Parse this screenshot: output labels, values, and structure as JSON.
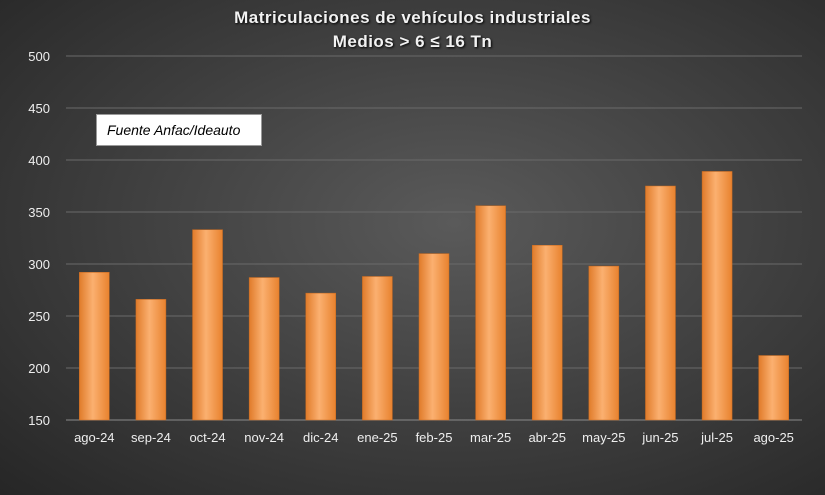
{
  "chart_data": {
    "type": "bar",
    "title": "Matriculaciones de vehículos industriales",
    "subtitle": "Medios > 6 ≤ 16 Tn",
    "source_note": "Fuente Anfac/Ideauto",
    "categories": [
      "ago-24",
      "sep-24",
      "oct-24",
      "nov-24",
      "dic-24",
      "ene-25",
      "feb-25",
      "mar-25",
      "abr-25",
      "may-25",
      "jun-25",
      "jul-25",
      "ago-25"
    ],
    "values": [
      292,
      266,
      333,
      287,
      272,
      288,
      310,
      356,
      318,
      298,
      375,
      389,
      212
    ],
    "ylim": [
      150,
      500
    ],
    "yticks": [
      150,
      200,
      250,
      300,
      350,
      400,
      450,
      500
    ],
    "xlabel": "",
    "ylabel": "",
    "grid": true,
    "bar_color": "#f79646"
  }
}
